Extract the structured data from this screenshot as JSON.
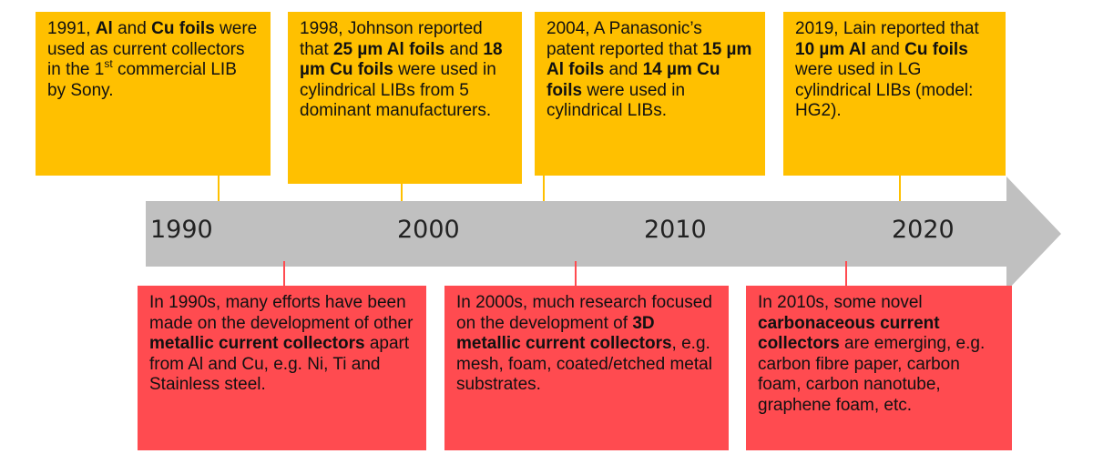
{
  "colors": {
    "top_box": "#ffc000",
    "bottom_box": "#ff4b50",
    "arrow": "#c0c0c0"
  },
  "years": [
    "1990",
    "2000",
    "2010",
    "2020"
  ],
  "top_boxes": [
    [
      {
        "t": "1991, "
      },
      {
        "t": "Al",
        "b": true
      },
      {
        "t": " and "
      },
      {
        "t": "Cu foils",
        "b": true
      },
      {
        "t": " were used as current collectors in the 1"
      },
      {
        "t": "st",
        "sup": true
      },
      {
        "t": " commercial LIB by Sony."
      }
    ],
    [
      {
        "t": "1998, Johnson reported that "
      },
      {
        "t": "25 µm Al foils",
        "b": true
      },
      {
        "t": " and "
      },
      {
        "t": "18 µm Cu foils",
        "b": true
      },
      {
        "t": " were used in cylindrical LIBs from 5 dominant manufacturers."
      }
    ],
    [
      {
        "t": "2004, A Panasonic’s patent reported that "
      },
      {
        "t": "15 µm Al foils",
        "b": true
      },
      {
        "t": " and "
      },
      {
        "t": "14 µm Cu foils",
        "b": true
      },
      {
        "t": " were used in cylindrical LIBs."
      }
    ],
    [
      {
        "t": "2019, Lain reported that "
      },
      {
        "t": "10 µm Al",
        "b": true
      },
      {
        "t": " and "
      },
      {
        "t": "Cu foils",
        "b": true
      },
      {
        "t": " were used in LG cylindrical LIBs (model: HG2)."
      }
    ]
  ],
  "bottom_boxes": [
    [
      {
        "t": "In 1990s, many efforts have been made on the development of other "
      },
      {
        "t": "metallic current collectors",
        "b": true
      },
      {
        "t": " apart from Al and Cu, e.g. Ni, Ti and Stainless steel."
      }
    ],
    [
      {
        "t": "In 2000s, much research focused on the development of "
      },
      {
        "t": "3D metallic current collectors",
        "b": true
      },
      {
        "t": ", e.g. mesh, foam, coated/etched metal substrates."
      }
    ],
    [
      {
        "t": "In 2010s, some novel "
      },
      {
        "t": "carbonaceous current collectors",
        "b": true
      },
      {
        "t": " are emerging, e.g. carbon fibre paper, carbon foam, carbon nanotube, graphene foam, etc."
      }
    ]
  ]
}
